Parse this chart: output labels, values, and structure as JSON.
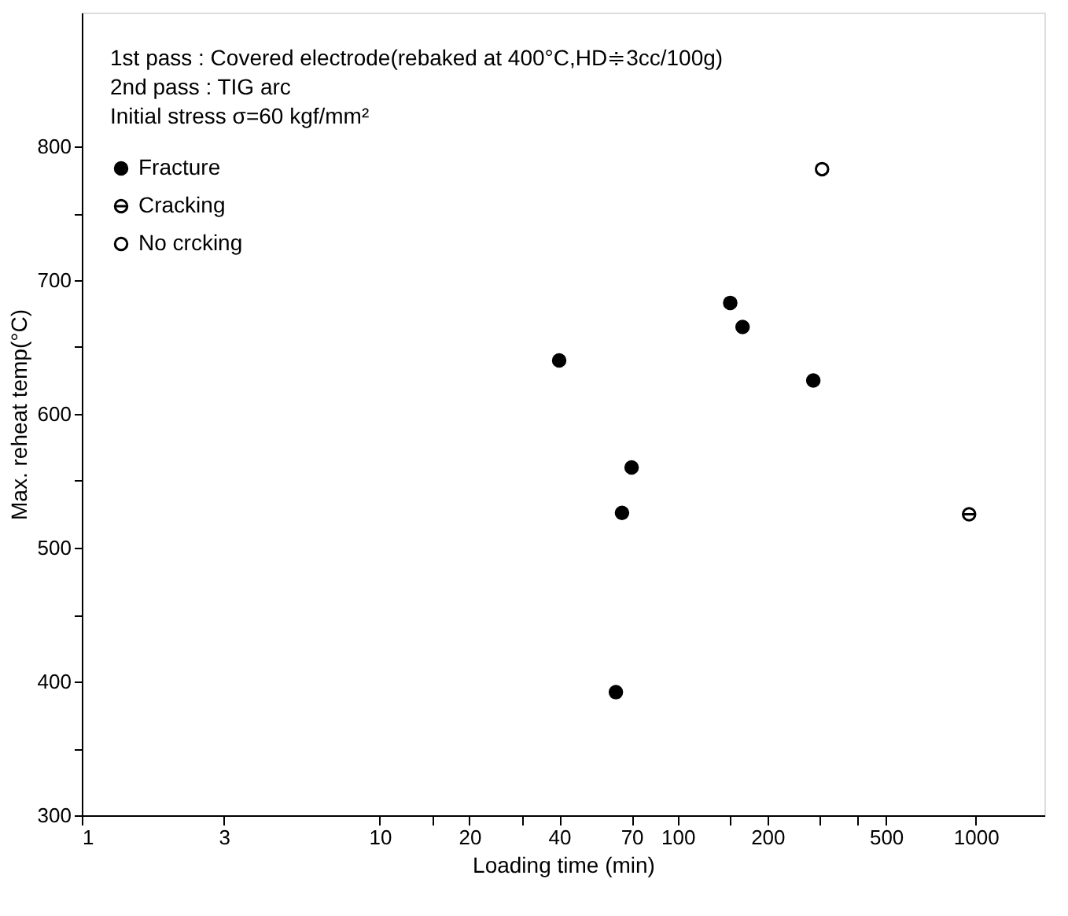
{
  "chart_data": {
    "type": "scatter",
    "xlabel": "Loading time (min)",
    "ylabel": "Max. reheat temp(°C)",
    "annotations": [
      "1st pass : Covered electrode(rebaked at 400°C,HD≑3cc/100g)",
      "2nd pass : TIG  arc",
      "Initial stress  σ=60 kgf/mm²"
    ],
    "series": [
      {
        "name": "Fracture",
        "color": "#000000",
        "x": [
          40,
          62,
          65,
          70,
          150,
          165,
          285
        ],
        "values": [
          640,
          392,
          526,
          560,
          683,
          665,
          625
        ]
      },
      {
        "name": "Cracking",
        "color": "#000000",
        "x": [
          950
        ],
        "values": [
          525
        ]
      },
      {
        "name": "No crcking",
        "color": "#000000",
        "x": [
          305
        ],
        "values": [
          783
        ]
      }
    ],
    "log": "x",
    "xlim": [
      1,
      1700
    ],
    "ylim": [
      300,
      900
    ],
    "xticks": [
      1,
      3,
      10,
      {
        "value": 15,
        "label": null
      },
      20,
      {
        "value": 30,
        "label": null
      },
      40,
      70,
      100,
      {
        "value": 150,
        "label": null
      },
      200,
      {
        "value": 300,
        "label": null
      },
      {
        "value": 400,
        "label": null
      },
      500,
      1000
    ],
    "yticks": [
      300,
      {
        "value": 350,
        "label": null
      },
      400,
      {
        "value": 450,
        "label": null
      },
      500,
      {
        "value": 550,
        "label": null
      },
      600,
      {
        "value": 650,
        "label": null
      },
      700,
      {
        "value": 750,
        "label": null
      },
      800
    ],
    "grid": false,
    "legend": "top left"
  }
}
